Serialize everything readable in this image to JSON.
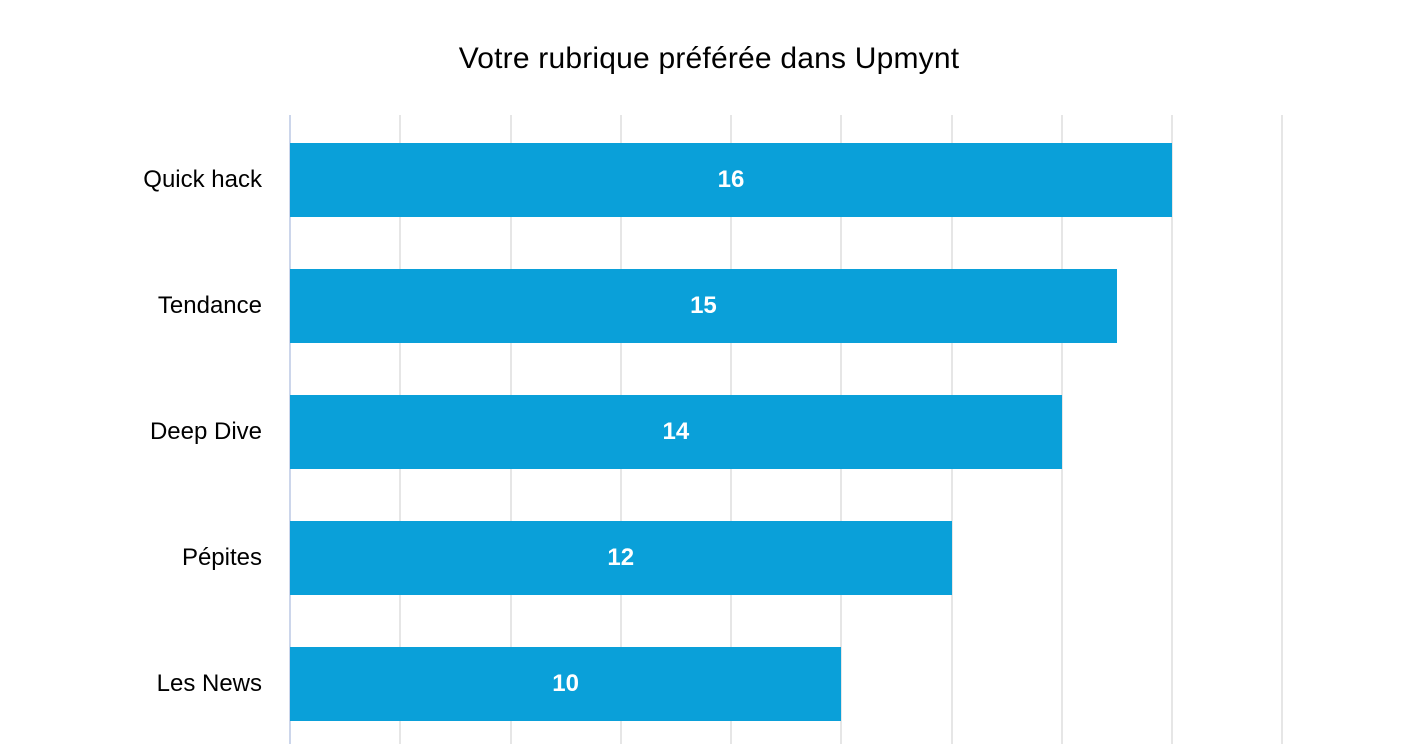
{
  "title": "Votre rubrique préférée dans Upmynt",
  "colors": {
    "background": "#ffffff",
    "bar": "#0aa0d9",
    "gridline": "#e6e6e6",
    "axis_line": "#ccd6eb",
    "title_text": "#000000",
    "category_text": "#000000",
    "value_text": "#ffffff"
  },
  "chart_data": {
    "type": "bar",
    "orientation": "horizontal",
    "title": "Votre rubrique préférée dans Upmynt",
    "categories": [
      "Quick hack",
      "Tendance",
      "Deep Dive",
      "Pépites",
      "Les News"
    ],
    "values": [
      16,
      15,
      14,
      12,
      10
    ],
    "xlabel": "",
    "ylabel": "",
    "xlim": [
      0,
      18
    ],
    "gridline_step": 2,
    "grid": true,
    "data_labels": true,
    "data_label_position": "center",
    "legend": false
  }
}
